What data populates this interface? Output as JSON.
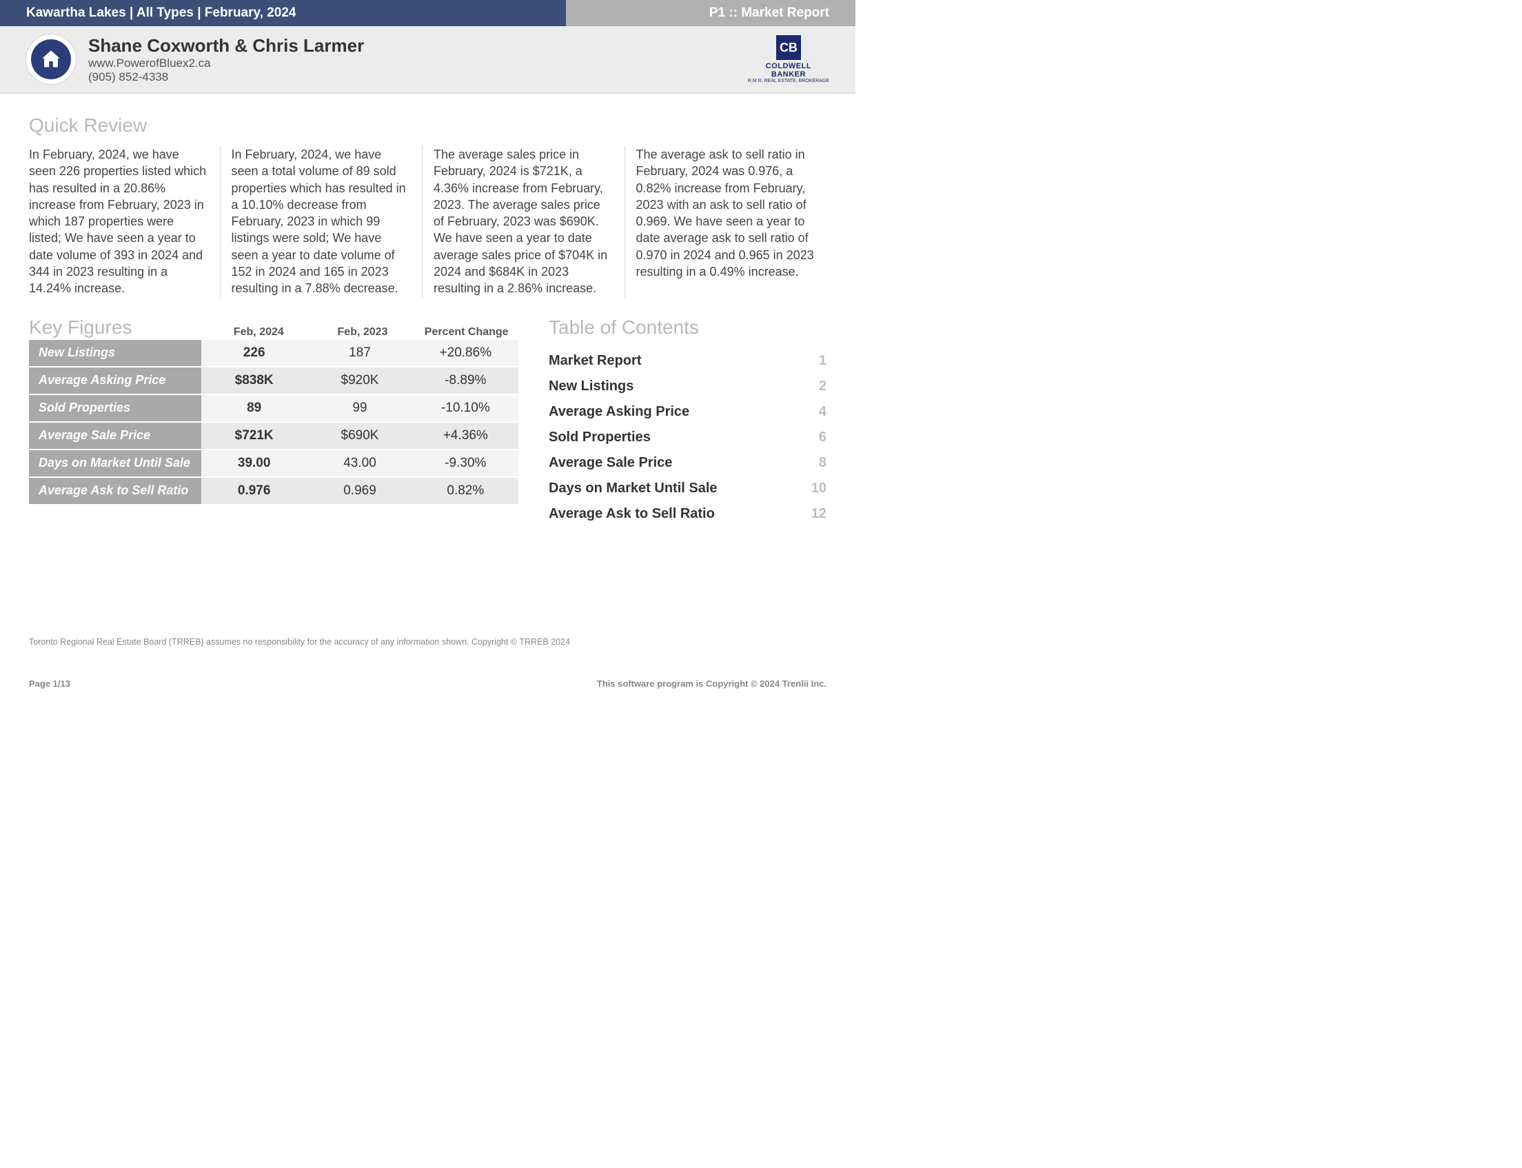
{
  "colors": {
    "header_blue": "#3b4f78",
    "header_gray": "#b1b1b1",
    "band_bg": "#ececec",
    "section_title": "#b8b8b8",
    "row_label_bg": "#a9a9a9",
    "row_light": "#f4f4f4",
    "row_dark": "#e9e9e9",
    "brand_blue": "#1a2a6c"
  },
  "top": {
    "left": "Kawartha Lakes | All Types | February, 2024",
    "right": "P1 :: Market Report"
  },
  "agent": {
    "name": "Shane Coxworth & Chris Larmer",
    "site": "www.PowerofBluex2.ca",
    "phone": "(905) 852-4338"
  },
  "brand": {
    "mark": "CB",
    "line1": "COLDWELL",
    "line2": "BANKER",
    "line3": "R.M.R. REAL ESTATE, BROKERAGE"
  },
  "sections": {
    "quick": "Quick Review",
    "key": "Key Figures",
    "toc": "Table of Contents"
  },
  "quick": [
    "In February, 2024, we have seen 226 properties listed which has resulted in a 20.86% increase from February, 2023 in which 187 properties were listed; We have seen a year to date volume of 393 in 2024 and 344 in 2023 resulting in a 14.24% increase.",
    "In February, 2024, we have seen a total volume of 89 sold properties which has resulted in a 10.10% decrease from February, 2023 in which 99 listings were sold; We have seen a year to date volume of 152 in 2024 and 165 in 2023 resulting in a 7.88% decrease.",
    "The average sales price in February, 2024 is $721K, a 4.36% increase from February, 2023. The average sales price of February, 2023 was $690K. We have seen a year to date average sales price of $704K in 2024 and $684K in 2023 resulting in a 2.86% increase.",
    "The average ask to sell ratio in February, 2024 was 0.976, a 0.82% increase from February, 2023 with an ask to sell ratio of 0.969. We have seen a year to date average ask to sell ratio of 0.970 in 2024 and 0.965 in 2023 resulting in a 0.49% increase."
  ],
  "kf": {
    "headers": [
      "Feb, 2024",
      "Feb, 2023",
      "Percent Change"
    ],
    "rows": [
      {
        "label": "New Listings",
        "a": "226",
        "b": "187",
        "c": "+20.86%"
      },
      {
        "label": "Average Asking Price",
        "a": "$838K",
        "b": "$920K",
        "c": "-8.89%"
      },
      {
        "label": "Sold Properties",
        "a": "89",
        "b": "99",
        "c": "-10.10%"
      },
      {
        "label": "Average Sale Price",
        "a": "$721K",
        "b": "$690K",
        "c": "+4.36%"
      },
      {
        "label": "Days on Market Until Sale",
        "a": "39.00",
        "b": "43.00",
        "c": "-9.30%"
      },
      {
        "label": "Average Ask to Sell Ratio",
        "a": "0.976",
        "b": "0.969",
        "c": "0.82%"
      }
    ]
  },
  "toc": [
    {
      "t": "Market Report",
      "p": "1"
    },
    {
      "t": "New Listings",
      "p": "2"
    },
    {
      "t": "Average Asking Price",
      "p": "4"
    },
    {
      "t": "Sold Properties",
      "p": "6"
    },
    {
      "t": "Average Sale Price",
      "p": "8"
    },
    {
      "t": "Days on Market Until Sale",
      "p": "10"
    },
    {
      "t": "Average Ask to Sell Ratio",
      "p": "12"
    }
  ],
  "footer": {
    "disclaimer": "Toronto Regional Real Estate Board (TRREB) assumes no responsibility for the accuracy of any information shown. Copyright © TRREB 2024",
    "page": "Page 1/13",
    "credit": "This software program is Copyright © 2024 Trenlii Inc."
  }
}
